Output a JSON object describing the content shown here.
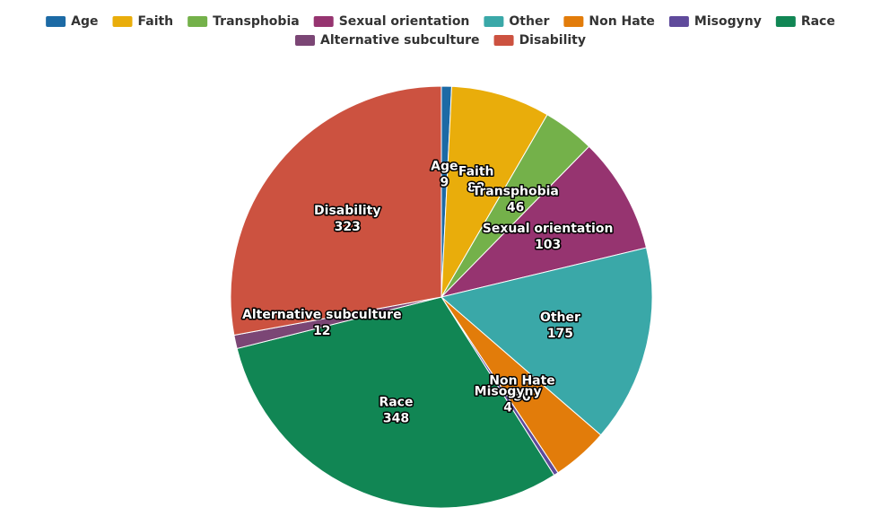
{
  "chart_data": {
    "type": "pie",
    "title": "",
    "legend_position": "top",
    "slices": [
      {
        "name": "Age",
        "value": 9,
        "color": "#1c6aa5"
      },
      {
        "name": "Faith",
        "value": 88,
        "color": "#e9ad0b"
      },
      {
        "name": "Transphobia",
        "value": 46,
        "color": "#74b14a"
      },
      {
        "name": "Sexual orientation",
        "value": 103,
        "color": "#963470"
      },
      {
        "name": "Other",
        "value": 175,
        "color": "#3aa8a8"
      },
      {
        "name": "Non Hate",
        "value": 50,
        "color": "#e27c0a"
      },
      {
        "name": "Misogyny",
        "value": 4,
        "color": "#5f4a9b"
      },
      {
        "name": "Race",
        "value": 348,
        "color": "#118654"
      },
      {
        "name": "Alternative subculture",
        "value": 12,
        "color": "#7b4675"
      },
      {
        "name": "Disability",
        "value": 323,
        "color": "#cc5240"
      }
    ]
  }
}
